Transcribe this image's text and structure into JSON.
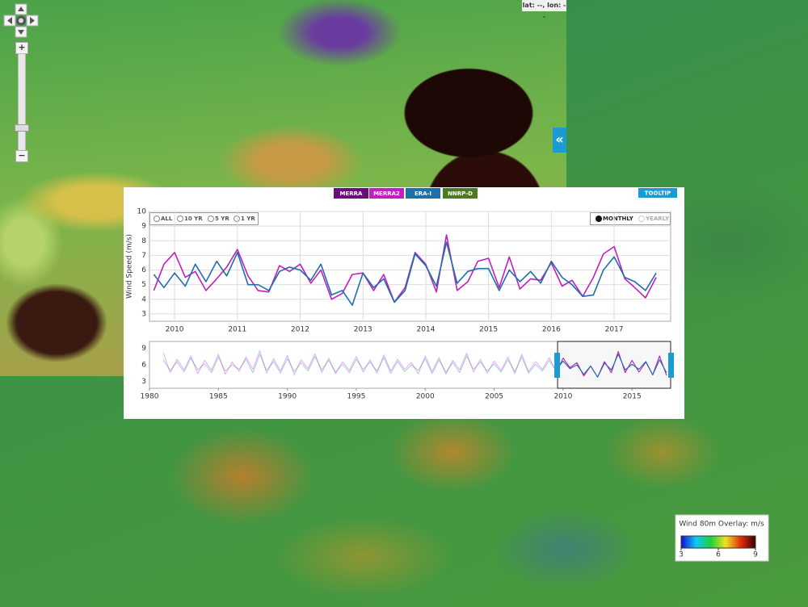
{
  "ui": {
    "coords": "lat: --, lon: --",
    "zoom_in": "+",
    "zoom_out": "−",
    "collapse": "«",
    "tooltip": "TOOLTIP",
    "ranges": [
      "ALL",
      "10 YR",
      "5 YR",
      "1 YR"
    ],
    "periods": [
      "MONTHLY",
      "YEARLY"
    ]
  },
  "colorbar": {
    "title": "Wind 80m Overlay: m/s",
    "range": [
      3,
      9
    ],
    "ticks": [
      3,
      6,
      9
    ],
    "colors": [
      "#1010d0",
      "#10c8f0",
      "#20d040",
      "#f0e020",
      "#e03010",
      "#3a0000"
    ]
  },
  "chart_data": [
    {
      "type": "line",
      "y_label": "Wind Speed (m/s)",
      "xlim": [
        2009.6,
        2017.9
      ],
      "xticks": [
        2010,
        2011,
        2012,
        2013,
        2014,
        2015,
        2016,
        2017
      ],
      "ylim": [
        2.5,
        10
      ],
      "yticks": [
        3,
        4,
        5,
        6,
        7,
        8,
        9,
        10
      ],
      "grid": true,
      "x": [
        2009.67,
        2009.83,
        2010.0,
        2010.17,
        2010.33,
        2010.5,
        2010.67,
        2010.83,
        2011.0,
        2011.17,
        2011.33,
        2011.5,
        2011.67,
        2011.83,
        2012.0,
        2012.17,
        2012.33,
        2012.5,
        2012.67,
        2012.83,
        2013.0,
        2013.17,
        2013.33,
        2013.5,
        2013.67,
        2013.83,
        2014.0,
        2014.17,
        2014.33,
        2014.5,
        2014.67,
        2014.83,
        2015.0,
        2015.17,
        2015.33,
        2015.5,
        2015.67,
        2015.83,
        2016.0,
        2016.17,
        2016.33,
        2016.5,
        2016.67,
        2016.83,
        2017.0,
        2017.17,
        2017.33,
        2017.5,
        2017.67
      ],
      "series": [
        {
          "name": "MERRA2",
          "color": "#c21fc2",
          "values": [
            4.6,
            6.4,
            7.2,
            5.5,
            5.9,
            4.6,
            5.4,
            6.2,
            7.4,
            5.6,
            4.6,
            4.5,
            6.3,
            5.9,
            6.4,
            5.1,
            6.0,
            4.0,
            4.4,
            5.7,
            5.8,
            4.6,
            5.7,
            3.8,
            4.8,
            7.2,
            6.4,
            4.5,
            8.4,
            4.6,
            5.2,
            6.6,
            6.8,
            4.8,
            6.9,
            4.7,
            5.4,
            5.3,
            6.5,
            4.9,
            5.3,
            4.2,
            5.5,
            7.1,
            7.6,
            5.4,
            4.8,
            4.1,
            5.5
          ]
        },
        {
          "name": "ERA-I",
          "color": "#1f6fa8",
          "values": [
            5.7,
            4.8,
            5.8,
            4.9,
            6.4,
            5.2,
            6.6,
            5.6,
            7.2,
            5.0,
            5.0,
            4.6,
            5.9,
            6.2,
            6.0,
            5.3,
            6.4,
            4.3,
            4.6,
            3.6,
            5.8,
            4.8,
            5.4,
            3.8,
            4.6,
            7.1,
            6.3,
            4.9,
            7.9,
            5.1,
            5.9,
            6.1,
            6.1,
            4.6,
            6.0,
            5.2,
            5.9,
            5.1,
            6.6,
            5.5,
            5.0,
            4.2,
            4.3,
            6.0,
            6.9,
            5.5,
            5.2,
            4.6,
            5.8
          ]
        }
      ],
      "other_datasets": [
        {
          "name": "MERRA",
          "color": "#6a0f7a"
        },
        {
          "name": "NNRP-D",
          "color": "#4f7a25"
        }
      ]
    },
    {
      "type": "line",
      "xlim": [
        1980,
        2017.8
      ],
      "xticks": [
        1980,
        1985,
        1990,
        1995,
        2000,
        2005,
        2010,
        2015
      ],
      "ylim": [
        1.8,
        10.2
      ],
      "yticks": [
        3,
        6,
        9
      ],
      "x": [
        1981,
        1981.5,
        1982,
        1982.5,
        1983,
        1983.5,
        1984,
        1984.5,
        1985,
        1985.5,
        1986,
        1986.5,
        1987,
        1987.5,
        1988,
        1988.5,
        1989,
        1989.5,
        1990,
        1990.5,
        1991,
        1991.5,
        1992,
        1992.5,
        1993,
        1993.5,
        1994,
        1994.5,
        1995,
        1995.5,
        1996,
        1996.5,
        1997,
        1997.5,
        1998,
        1998.5,
        1999,
        1999.5,
        2000,
        2000.5,
        2001,
        2001.5,
        2002,
        2002.5,
        2003,
        2003.5,
        2004,
        2004.5,
        2005,
        2005.5,
        2006,
        2006.5,
        2007,
        2007.5,
        2008,
        2008.5,
        2009,
        2009.5,
        2010,
        2010.5,
        2011,
        2011.5,
        2012,
        2012.5,
        2013,
        2013.5,
        2014,
        2014.5,
        2015,
        2015.5,
        2016,
        2016.5,
        2017,
        2017.5
      ],
      "series": [
        {
          "color": "#c21fc2",
          "values": [
            8.2,
            4.6,
            7.0,
            5.1,
            7.6,
            4.4,
            6.8,
            5.0,
            7.9,
            4.3,
            6.5,
            4.8,
            7.4,
            5.2,
            8.5,
            4.5,
            7.1,
            4.9,
            7.7,
            4.2,
            6.9,
            5.3,
            8.0,
            4.6,
            7.2,
            4.4,
            6.6,
            5.0,
            7.5,
            4.7,
            6.9,
            4.5,
            7.8,
            4.9,
            7.0,
            5.2,
            6.4,
            4.4,
            7.6,
            4.8,
            7.3,
            4.3,
            6.8,
            5.1,
            8.1,
            4.7,
            7.0,
            4.5,
            6.7,
            5.0,
            7.4,
            4.4,
            7.9,
            4.8,
            6.6,
            5.2,
            7.3,
            4.6,
            7.2,
            5.5,
            6.4,
            4.0,
            5.8,
            3.8,
            6.6,
            4.6,
            8.4,
            4.6,
            6.8,
            4.7,
            6.5,
            4.2,
            7.6,
            4.1
          ]
        },
        {
          "color": "#1f6fa8",
          "values": [
            6.9,
            5.0,
            6.5,
            4.7,
            7.2,
            5.1,
            6.2,
            4.6,
            7.4,
            4.9,
            6.0,
            5.2,
            7.0,
            4.6,
            7.9,
            5.0,
            6.6,
            4.5,
            7.1,
            4.8,
            6.4,
            4.9,
            7.5,
            5.1,
            6.8,
            4.7,
            6.1,
            4.6,
            7.0,
            5.2,
            6.5,
            4.9,
            7.3,
            4.5,
            6.6,
            4.8,
            6.0,
            5.0,
            7.1,
            4.4,
            6.9,
            4.7,
            6.4,
            4.6,
            7.6,
            5.2,
            6.5,
            4.9,
            6.2,
            4.7,
            6.9,
            4.8,
            7.4,
            4.5,
            6.1,
            4.9,
            6.8,
            5.0,
            6.7,
            5.3,
            6.0,
            4.3,
            5.8,
            3.8,
            6.3,
            5.1,
            7.9,
            5.1,
            6.1,
            5.2,
            6.6,
            4.2,
            6.9,
            4.6
          ]
        }
      ]
    }
  ]
}
